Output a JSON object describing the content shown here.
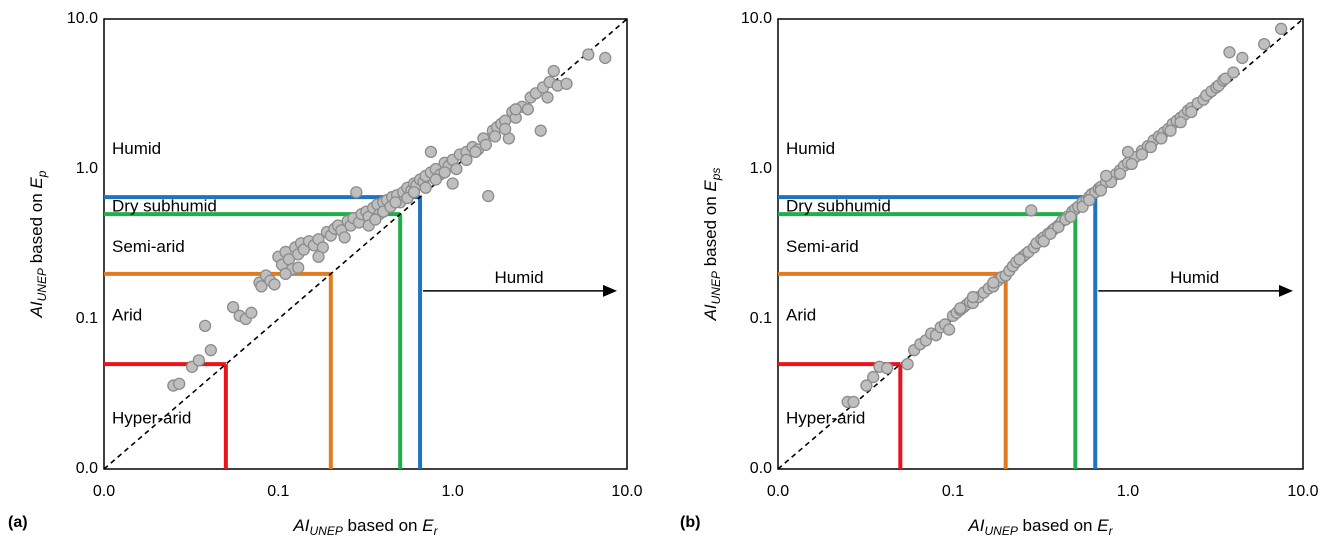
{
  "chart_data": [
    {
      "type": "scatter",
      "panel_label": "(a)",
      "xlabel": {
        "main": "AI",
        "sub": "UNEP",
        "mid": " based on ",
        "var": "E",
        "varsub": "r"
      },
      "ylabel": {
        "main": "AI",
        "sub": "UNEP",
        "mid": " based on ",
        "var": "E",
        "varsub": "p"
      },
      "x_scale": "log",
      "y_scale": "log",
      "xlim": [
        0.01,
        10
      ],
      "ylim": [
        0.01,
        10
      ],
      "x_ticks": [
        0.01,
        0.1,
        1,
        10
      ],
      "y_ticks": [
        0.01,
        0.1,
        1,
        10
      ],
      "x_tick_labels": [
        "0.0",
        "0.1",
        "1.0",
        "10.0"
      ],
      "y_tick_labels": [
        "0.0",
        "0.1",
        "1.0",
        "10.0"
      ],
      "reference_line": "1:1",
      "thresholds": [
        {
          "value": 0.05,
          "color": "#e8141c"
        },
        {
          "value": 0.2,
          "color": "#e07b1f"
        },
        {
          "value": 0.5,
          "color": "#1fae4a"
        },
        {
          "value": 0.65,
          "color": "#1f73c2"
        }
      ],
      "zone_labels": [
        {
          "text": "Humid",
          "y": 1.35
        },
        {
          "text": "Dry subhumid",
          "y": 0.56
        },
        {
          "text": "Semi-arid",
          "y": 0.3
        },
        {
          "text": "Arid",
          "y": 0.105
        },
        {
          "text": "Hyper-arid",
          "y": 0.0215
        }
      ],
      "arrow_label": "Humid",
      "arrow_y": 0.2,
      "points": [
        [
          0.025,
          0.036
        ],
        [
          0.027,
          0.037
        ],
        [
          0.032,
          0.048
        ],
        [
          0.035,
          0.053
        ],
        [
          0.038,
          0.09
        ],
        [
          0.041,
          0.062
        ],
        [
          0.055,
          0.12
        ],
        [
          0.06,
          0.105
        ],
        [
          0.065,
          0.1
        ],
        [
          0.07,
          0.11
        ],
        [
          0.078,
          0.175
        ],
        [
          0.08,
          0.165
        ],
        [
          0.085,
          0.195
        ],
        [
          0.09,
          0.18
        ],
        [
          0.095,
          0.17
        ],
        [
          0.1,
          0.26
        ],
        [
          0.105,
          0.23
        ],
        [
          0.11,
          0.28
        ],
        [
          0.115,
          0.25
        ],
        [
          0.12,
          0.215
        ],
        [
          0.125,
          0.3
        ],
        [
          0.13,
          0.27
        ],
        [
          0.135,
          0.32
        ],
        [
          0.14,
          0.29
        ],
        [
          0.15,
          0.33
        ],
        [
          0.16,
          0.31
        ],
        [
          0.17,
          0.34
        ],
        [
          0.18,
          0.3
        ],
        [
          0.19,
          0.38
        ],
        [
          0.2,
          0.36
        ],
        [
          0.21,
          0.4
        ],
        [
          0.22,
          0.42
        ],
        [
          0.23,
          0.39
        ],
        [
          0.25,
          0.45
        ],
        [
          0.26,
          0.42
        ],
        [
          0.27,
          0.47
        ],
        [
          0.28,
          0.7
        ],
        [
          0.29,
          0.44
        ],
        [
          0.3,
          0.5
        ],
        [
          0.32,
          0.52
        ],
        [
          0.33,
          0.48
        ],
        [
          0.35,
          0.55
        ],
        [
          0.37,
          0.58
        ],
        [
          0.38,
          0.5
        ],
        [
          0.4,
          0.6
        ],
        [
          0.42,
          0.62
        ],
        [
          0.45,
          0.65
        ],
        [
          0.48,
          0.67
        ],
        [
          0.5,
          0.6
        ],
        [
          0.52,
          0.7
        ],
        [
          0.55,
          0.75
        ],
        [
          0.58,
          0.72
        ],
        [
          0.6,
          0.8
        ],
        [
          0.62,
          0.78
        ],
        [
          0.65,
          0.85
        ],
        [
          0.68,
          0.82
        ],
        [
          0.7,
          0.9
        ],
        [
          0.75,
          0.95
        ],
        [
          0.8,
          1.0
        ],
        [
          0.85,
          0.92
        ],
        [
          0.9,
          1.1
        ],
        [
          0.95,
          1.05
        ],
        [
          1.0,
          1.15
        ],
        [
          1.1,
          1.25
        ],
        [
          1.2,
          1.3
        ],
        [
          1.3,
          1.4
        ],
        [
          1.4,
          1.35
        ],
        [
          1.5,
          1.6
        ],
        [
          1.6,
          0.66
        ],
        [
          1.7,
          1.8
        ],
        [
          1.8,
          1.9
        ],
        [
          1.9,
          2.0
        ],
        [
          2.0,
          2.1
        ],
        [
          2.1,
          1.6
        ],
        [
          2.2,
          2.4
        ],
        [
          2.3,
          2.2
        ],
        [
          2.5,
          2.6
        ],
        [
          2.7,
          2.5
        ],
        [
          2.8,
          3.0
        ],
        [
          3.0,
          3.2
        ],
        [
          3.2,
          1.8
        ],
        [
          3.3,
          3.5
        ],
        [
          3.5,
          3.0
        ],
        [
          3.6,
          3.8
        ],
        [
          3.8,
          4.5
        ],
        [
          4.0,
          3.6
        ],
        [
          4.5,
          3.7
        ],
        [
          6.0,
          5.8
        ],
        [
          7.5,
          5.5
        ],
        [
          0.33,
          0.42
        ],
        [
          0.36,
          0.46
        ],
        [
          0.4,
          0.52
        ],
        [
          0.44,
          0.56
        ],
        [
          0.47,
          0.6
        ],
        [
          0.55,
          0.64
        ],
        [
          0.6,
          0.7
        ],
        [
          0.7,
          0.75
        ],
        [
          0.8,
          0.85
        ],
        [
          0.9,
          0.95
        ],
        [
          1.05,
          1.0
        ],
        [
          1.2,
          1.15
        ],
        [
          1.35,
          1.3
        ],
        [
          1.55,
          1.45
        ],
        [
          1.75,
          1.65
        ],
        [
          2.0,
          1.85
        ],
        [
          2.3,
          2.5
        ],
        [
          0.24,
          0.35
        ],
        [
          0.17,
          0.26
        ],
        [
          0.13,
          0.22
        ],
        [
          0.11,
          0.2
        ],
        [
          0.75,
          1.3
        ],
        [
          1.0,
          0.8
        ]
      ]
    },
    {
      "type": "scatter",
      "panel_label": "(b)",
      "xlabel": {
        "main": "AI",
        "sub": "UNEP",
        "mid": " based on ",
        "var": "E",
        "varsub": "r"
      },
      "ylabel": {
        "main": "AI",
        "sub": "UNEP",
        "mid": " based on ",
        "var": "E",
        "varsub": "ps"
      },
      "x_scale": "log",
      "y_scale": "log",
      "xlim": [
        0.01,
        10
      ],
      "ylim": [
        0.01,
        10
      ],
      "x_ticks": [
        0.01,
        0.1,
        1,
        10
      ],
      "y_ticks": [
        0.01,
        0.1,
        1,
        10
      ],
      "x_tick_labels": [
        "0.0",
        "0.1",
        "1.0",
        "10.0"
      ],
      "y_tick_labels": [
        "0.0",
        "0.1",
        "1.0",
        "10.0"
      ],
      "reference_line": "1:1",
      "thresholds": [
        {
          "value": 0.05,
          "color": "#e8141c"
        },
        {
          "value": 0.2,
          "color": "#e07b1f"
        },
        {
          "value": 0.5,
          "color": "#1fae4a"
        },
        {
          "value": 0.65,
          "color": "#1f73c2"
        }
      ],
      "zone_labels": [
        {
          "text": "Humid",
          "y": 1.35
        },
        {
          "text": "Dry subhumid",
          "y": 0.56
        },
        {
          "text": "Semi-arid",
          "y": 0.3
        },
        {
          "text": "Arid",
          "y": 0.105
        },
        {
          "text": "Hyper-arid",
          "y": 0.0215
        }
      ],
      "arrow_label": "Humid",
      "arrow_y": 0.2,
      "points": [
        [
          0.025,
          0.028
        ],
        [
          0.027,
          0.028
        ],
        [
          0.032,
          0.036
        ],
        [
          0.035,
          0.041
        ],
        [
          0.038,
          0.048
        ],
        [
          0.042,
          0.047
        ],
        [
          0.055,
          0.05
        ],
        [
          0.06,
          0.062
        ],
        [
          0.065,
          0.068
        ],
        [
          0.07,
          0.072
        ],
        [
          0.075,
          0.08
        ],
        [
          0.08,
          0.078
        ],
        [
          0.085,
          0.088
        ],
        [
          0.09,
          0.092
        ],
        [
          0.095,
          0.085
        ],
        [
          0.1,
          0.105
        ],
        [
          0.105,
          0.11
        ],
        [
          0.11,
          0.115
        ],
        [
          0.115,
          0.12
        ],
        [
          0.12,
          0.125
        ],
        [
          0.125,
          0.13
        ],
        [
          0.13,
          0.128
        ],
        [
          0.14,
          0.14
        ],
        [
          0.15,
          0.15
        ],
        [
          0.16,
          0.16
        ],
        [
          0.17,
          0.165
        ],
        [
          0.18,
          0.18
        ],
        [
          0.19,
          0.19
        ],
        [
          0.2,
          0.195
        ],
        [
          0.21,
          0.21
        ],
        [
          0.22,
          0.225
        ],
        [
          0.23,
          0.24
        ],
        [
          0.25,
          0.26
        ],
        [
          0.26,
          0.27
        ],
        [
          0.27,
          0.28
        ],
        [
          0.28,
          0.53
        ],
        [
          0.29,
          0.3
        ],
        [
          0.3,
          0.32
        ],
        [
          0.32,
          0.34
        ],
        [
          0.33,
          0.35
        ],
        [
          0.35,
          0.37
        ],
        [
          0.37,
          0.39
        ],
        [
          0.38,
          0.4
        ],
        [
          0.4,
          0.42
        ],
        [
          0.42,
          0.45
        ],
        [
          0.45,
          0.48
        ],
        [
          0.48,
          0.52
        ],
        [
          0.5,
          0.54
        ],
        [
          0.52,
          0.56
        ],
        [
          0.55,
          0.6
        ],
        [
          0.58,
          0.62
        ],
        [
          0.6,
          0.65
        ],
        [
          0.62,
          0.68
        ],
        [
          0.65,
          0.7
        ],
        [
          0.68,
          0.74
        ],
        [
          0.7,
          0.76
        ],
        [
          0.75,
          0.82
        ],
        [
          0.8,
          0.87
        ],
        [
          0.85,
          0.92
        ],
        [
          0.9,
          0.98
        ],
        [
          0.95,
          1.05
        ],
        [
          1.0,
          1.1
        ],
        [
          1.1,
          1.2
        ],
        [
          1.2,
          1.32
        ],
        [
          1.3,
          1.42
        ],
        [
          1.4,
          1.55
        ],
        [
          1.5,
          1.65
        ],
        [
          1.6,
          1.75
        ],
        [
          1.7,
          1.85
        ],
        [
          1.8,
          2.0
        ],
        [
          1.9,
          2.1
        ],
        [
          2.0,
          2.2
        ],
        [
          2.1,
          2.3
        ],
        [
          2.2,
          2.45
        ],
        [
          2.3,
          2.55
        ],
        [
          2.5,
          2.75
        ],
        [
          2.7,
          2.9
        ],
        [
          2.8,
          3.1
        ],
        [
          3.0,
          3.3
        ],
        [
          3.2,
          3.5
        ],
        [
          3.3,
          3.6
        ],
        [
          3.5,
          3.9
        ],
        [
          3.6,
          4.0
        ],
        [
          3.8,
          6.0
        ],
        [
          4.0,
          4.4
        ],
        [
          4.5,
          5.5
        ],
        [
          6.0,
          6.8
        ],
        [
          7.5,
          8.6
        ],
        [
          0.33,
          0.33
        ],
        [
          0.36,
          0.37
        ],
        [
          0.4,
          0.41
        ],
        [
          0.44,
          0.46
        ],
        [
          0.47,
          0.48
        ],
        [
          0.55,
          0.56
        ],
        [
          0.6,
          0.62
        ],
        [
          0.7,
          0.72
        ],
        [
          0.8,
          0.82
        ],
        [
          0.9,
          0.93
        ],
        [
          1.05,
          1.08
        ],
        [
          1.2,
          1.25
        ],
        [
          1.35,
          1.4
        ],
        [
          1.55,
          1.6
        ],
        [
          1.75,
          1.8
        ],
        [
          2.0,
          2.05
        ],
        [
          2.3,
          2.4
        ],
        [
          0.24,
          0.25
        ],
        [
          0.17,
          0.175
        ],
        [
          0.13,
          0.14
        ],
        [
          0.11,
          0.118
        ],
        [
          0.75,
          0.9
        ],
        [
          1.0,
          1.3
        ]
      ]
    }
  ]
}
